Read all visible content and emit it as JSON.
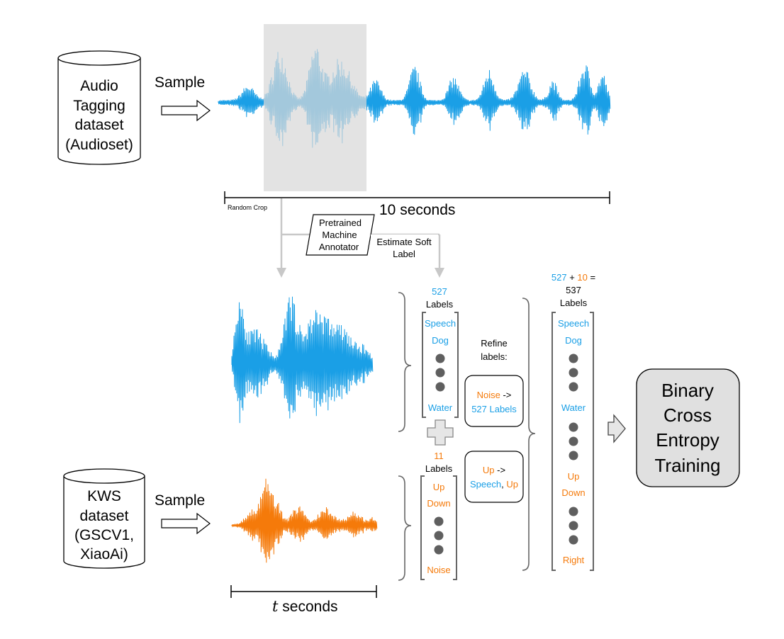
{
  "audio_dataset": {
    "lines": [
      "Audio",
      "Tagging",
      "dataset",
      "(Audioset)"
    ]
  },
  "kws_dataset": {
    "lines": [
      "KWS",
      "dataset",
      "(GSCV1,",
      "XiaoAi)"
    ]
  },
  "sample_label": "Sample",
  "random_crop_label": "Random Crop",
  "duration_audio": "10 seconds",
  "duration_kws_t": "t",
  "duration_kws_rest": " seconds",
  "annotator": {
    "lines": [
      "Pretrained",
      "Machine",
      "Annotator"
    ]
  },
  "estimate_soft": {
    "lines": [
      "Estimate Soft",
      "Label"
    ]
  },
  "list_audio": {
    "count": "527",
    "count_label": "Labels",
    "items": [
      "Speech",
      "Dog",
      "Water"
    ]
  },
  "list_kws": {
    "count": "11",
    "count_label": "Labels",
    "items": [
      "Up",
      "Down",
      "Noise"
    ]
  },
  "refine": {
    "lines": [
      "Refine",
      "labels:"
    ]
  },
  "refine_box1": {
    "src": "Noise",
    "arrow": " ->",
    "dst": "527 Labels"
  },
  "refine_box2": {
    "src": "Up",
    "arrow": " ->",
    "dst_a": "Speech",
    "sep": ", ",
    "dst_b": "Up"
  },
  "combined": {
    "a": "527",
    "plus": " + ",
    "b": "10",
    "eq": " =",
    "total": "537",
    "label": "Labels",
    "items": [
      "Speech",
      "Dog",
      "Water",
      "Up",
      "Down",
      "Right"
    ]
  },
  "training": {
    "lines": [
      "Binary",
      "Cross",
      "Entropy",
      "Training"
    ]
  },
  "colors": {
    "audioset_wave": "#1a9fe6",
    "kws_wave": "#f57a0a",
    "crop_highlight": "#e0e0e0",
    "arrow_gray": "#c8c8c8",
    "training_fill": "#e0e0e0"
  }
}
